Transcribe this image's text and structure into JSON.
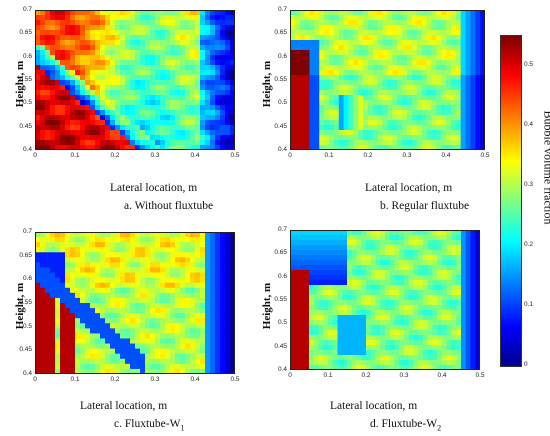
{
  "chart_data": [
    {
      "type": "heatmap",
      "caption_prefix": "a. Without fluxtube",
      "caption_sub": "",
      "xlabel": "Lateral location, m",
      "ylabel": "Height, m",
      "xlim": [
        0,
        0.5
      ],
      "ylim": [
        0.4,
        0.7
      ],
      "x_ticks": [
        "0",
        "0.1",
        "0.2",
        "0.3",
        "0.4",
        "0.5"
      ],
      "y_ticks": [
        "0.4",
        "0.45",
        "0.5",
        "0.55",
        "0.6",
        "0.65",
        "0.7"
      ]
    },
    {
      "type": "heatmap",
      "caption_prefix": "b. Regular fluxtube",
      "caption_sub": "",
      "xlabel": "Lateral location, m",
      "ylabel": "Height, m",
      "xlim": [
        0,
        0.5
      ],
      "ylim": [
        0.4,
        0.7
      ],
      "x_ticks": [
        "0",
        "0.1",
        "0.2",
        "0.3",
        "0.4",
        "0.5"
      ],
      "y_ticks": [
        "0.4",
        "0.45",
        "0.5",
        "0.55",
        "0.6",
        "0.65",
        "0.7"
      ]
    },
    {
      "type": "heatmap",
      "caption_prefix": "c. Fluxtube-W",
      "caption_sub": "1",
      "xlabel": "Lateral location, m",
      "ylabel": "Height, m",
      "xlim": [
        0,
        0.5
      ],
      "ylim": [
        0.4,
        0.7
      ],
      "x_ticks": [
        "0",
        "0.1",
        "0.2",
        "0.3",
        "0.4",
        "0.5"
      ],
      "y_ticks": [
        "0.4",
        "0.45",
        "0.5",
        "0.55",
        "0.6",
        "0.65",
        "0.7"
      ]
    },
    {
      "type": "heatmap",
      "caption_prefix": "d. Fluxtube-W",
      "caption_sub": "2",
      "xlabel": "Lateral location, m",
      "ylabel": "Height, m",
      "xlim": [
        0,
        0.5
      ],
      "ylim": [
        0.4,
        0.7
      ],
      "x_ticks": [
        "0",
        "0.1",
        "0.2",
        "0.3",
        "0.4",
        "0.5"
      ],
      "y_ticks": [
        "0.4",
        "0.45",
        "0.5",
        "0.55",
        "0.6",
        "0.65",
        "0.7"
      ]
    }
  ],
  "colorbar": {
    "title": "Bubble volume fraction",
    "range": [
      0,
      0.55
    ],
    "ticks": [
      "0.5",
      "0.4",
      "0.3",
      "0.2",
      "0.1",
      "0"
    ],
    "colormap": "jet"
  }
}
